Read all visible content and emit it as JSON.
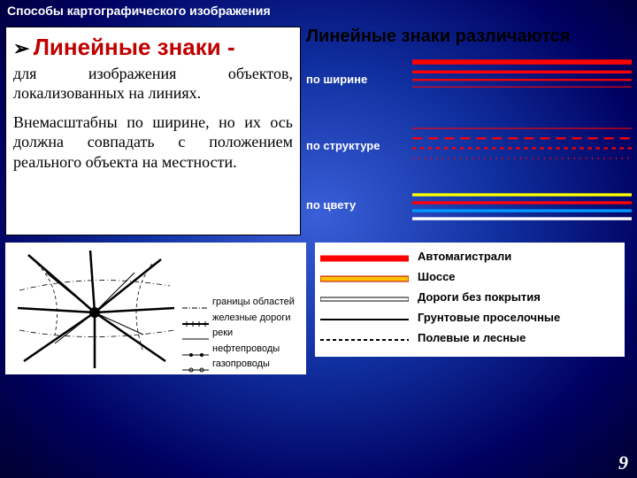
{
  "page_title": "Способы  картографического изображения",
  "left": {
    "arrow": "➢",
    "heading": "Линейные знаки -",
    "para1": "для   изображения   объектов, локализованных   на   линиях.",
    "para2": "Внемасштабны по ширине, но их ось    должна    совпадать    с положением реального объекта на местности."
  },
  "right_title": "Линейные знаки различаются",
  "categories": {
    "width": {
      "label": "по ширине",
      "lines": [
        {
          "y": 8,
          "stroke": "#ff0000",
          "sw": 5,
          "dash": ""
        },
        {
          "y": 18,
          "stroke": "#ff0000",
          "sw": 3,
          "dash": ""
        },
        {
          "y": 26,
          "stroke": "#ff0000",
          "sw": 2,
          "dash": ""
        },
        {
          "y": 33,
          "stroke": "#ff0000",
          "sw": 1,
          "dash": ""
        }
      ]
    },
    "structure": {
      "label": "по структуре",
      "lines": [
        {
          "y": 8,
          "stroke": "#ff0000",
          "sw": 1,
          "dash": ""
        },
        {
          "y": 18,
          "stroke": "#ff0000",
          "sw": 2,
          "dash": "10 6"
        },
        {
          "y": 28,
          "stroke": "#ff0000",
          "sw": 2,
          "dash": "4 4"
        },
        {
          "y": 38,
          "stroke": "#ff0000",
          "sw": 2,
          "dash": "1 5"
        }
      ]
    },
    "color": {
      "label": "по цвету",
      "lines": [
        {
          "y": 8,
          "stroke": "#ffff00",
          "sw": 3,
          "dash": ""
        },
        {
          "y": 16,
          "stroke": "#ff0000",
          "sw": 3,
          "dash": ""
        },
        {
          "y": 24,
          "stroke": "#0099ff",
          "sw": 3,
          "dash": ""
        },
        {
          "y": 32,
          "stroke": "#ffffff",
          "sw": 3,
          "dash": ""
        }
      ]
    }
  },
  "map_legend": [
    {
      "label": "границы областей",
      "style": "boundary"
    },
    {
      "label": "железные дороги",
      "style": "rail"
    },
    {
      "label": "реки",
      "style": "river"
    },
    {
      "label": "нефтепроводы",
      "style": "pipe-oil"
    },
    {
      "label": "газопроводы",
      "style": "pipe-gas"
    }
  ],
  "road_legend": [
    {
      "label": "Автомагистрали",
      "fill": "#ff0000",
      "border": "#ff0000",
      "thick": 6,
      "dash": ""
    },
    {
      "label": "Шоссе",
      "fill": "#ffc000",
      "border": "#c00000",
      "thick": 6,
      "dash": ""
    },
    {
      "label": "Дороги без покрытия",
      "fill": "#ffffff",
      "border": "#000000",
      "thick": 4,
      "dash": ""
    },
    {
      "label": "Грунтовые проселочные",
      "fill": "#000000",
      "border": "#000000",
      "thick": 2,
      "dash": ""
    },
    {
      "label": "Полевые и лесные",
      "fill": "#000000",
      "border": "#000000",
      "thick": 2,
      "dash": "4 3"
    }
  ],
  "page_number": "9"
}
